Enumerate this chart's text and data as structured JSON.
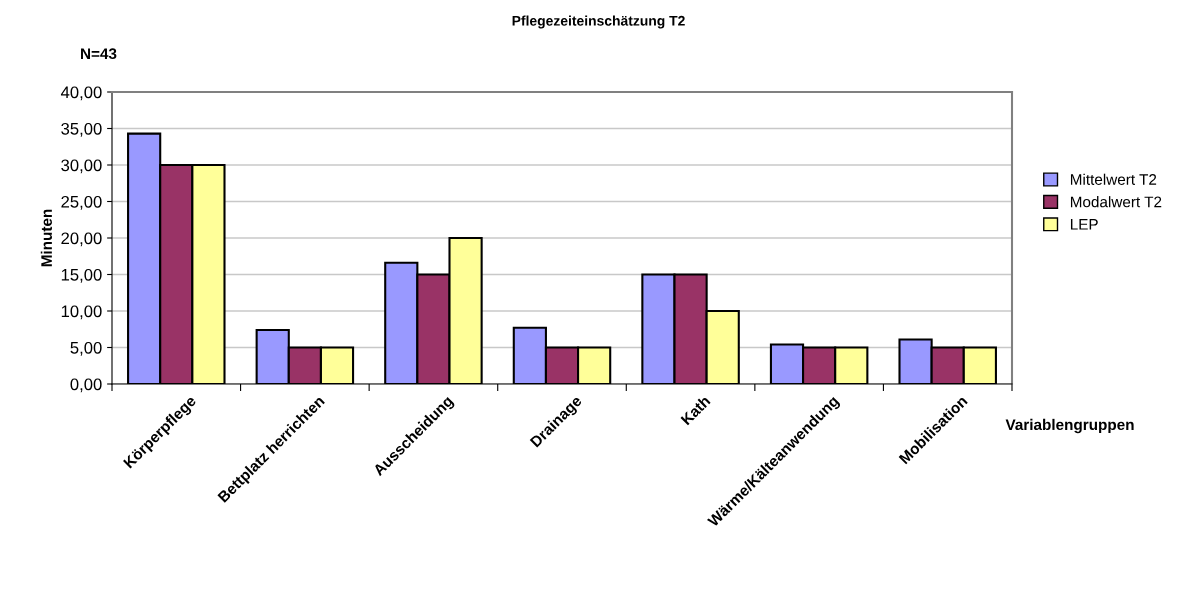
{
  "chart_data": {
    "type": "bar",
    "title": "Pflegezeiteinschätzung T2",
    "subtitle": "N=43",
    "xlabel": "Variablengruppen",
    "ylabel": "Minuten",
    "categories": [
      "Körperpflege",
      "Bettplatz herrichten",
      "Ausscheidung",
      "Drainage",
      "Kath",
      "Wärme/Kälteanwendung",
      "Mobilisation"
    ],
    "series": [
      {
        "name": "Mittelwert T2",
        "color": "#9999ff",
        "values": [
          34.3,
          7.4,
          16.6,
          7.7,
          15.0,
          5.4,
          6.1
        ]
      },
      {
        "name": "Modalwert T2",
        "color": "#993366",
        "values": [
          30,
          5,
          15,
          5,
          15,
          5,
          5
        ]
      },
      {
        "name": "LEP",
        "color": "#ffff99",
        "values": [
          30,
          5,
          20,
          5,
          10,
          5,
          5
        ]
      }
    ],
    "ylim": [
      0,
      40
    ],
    "yticks": [
      {
        "value": 0,
        "label": "0,00"
      },
      {
        "value": 5,
        "label": "5,00"
      },
      {
        "value": 10,
        "label": "10,00"
      },
      {
        "value": 15,
        "label": "15,00"
      },
      {
        "value": 20,
        "label": "20,00"
      },
      {
        "value": 25,
        "label": "25,00"
      },
      {
        "value": 30,
        "label": "30,00"
      },
      {
        "value": 35,
        "label": "35,00"
      },
      {
        "value": 40,
        "label": "40,00"
      }
    ],
    "grid": "y",
    "legend": "right"
  }
}
